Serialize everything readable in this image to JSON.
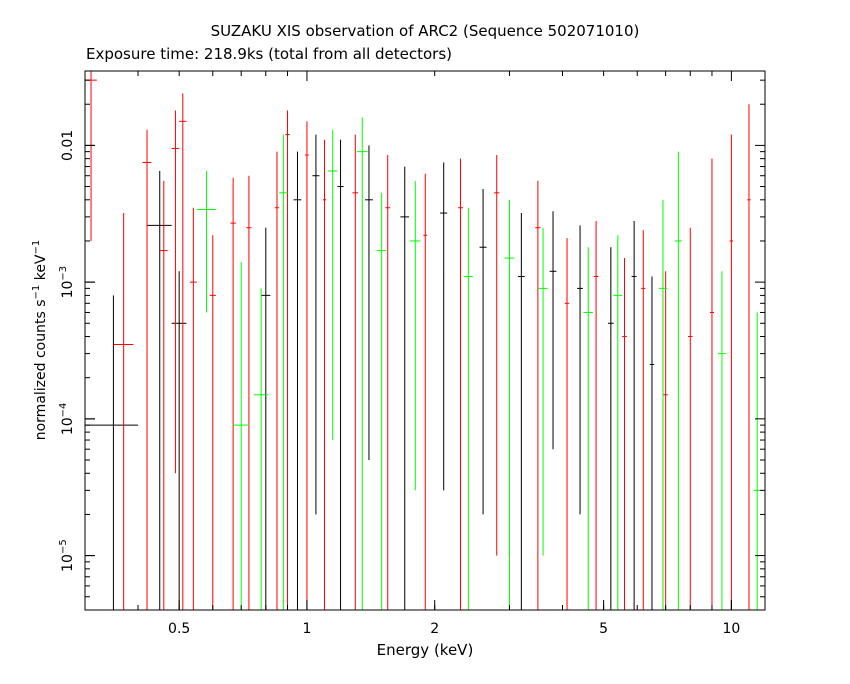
{
  "chart_data": {
    "type": "scatter",
    "title": "SUZAKU XIS observation of ARC2 (Sequence 502071010)",
    "subtitle": "Exposure time: 218.9ks (total from all detectors)",
    "xlabel": "Energy (keV)",
    "ylabel_base": "normalized counts s",
    "ylabel_sup1": "−1",
    "ylabel_mid": " keV",
    "ylabel_sup2": "−1",
    "x_scale": "log",
    "y_scale": "log",
    "xlim": [
      0.3,
      12
    ],
    "ylim": [
      4e-06,
      0.035
    ],
    "x_ticks": [
      {
        "value": 0.5,
        "label": "0.5"
      },
      {
        "value": 1,
        "label": "1"
      },
      {
        "value": 2,
        "label": "2"
      },
      {
        "value": 5,
        "label": "5"
      },
      {
        "value": 10,
        "label": "10"
      }
    ],
    "y_ticks": [
      {
        "value": 0.01,
        "label": "0.01"
      },
      {
        "value": 0.001,
        "label": "10",
        "exp": "−3"
      },
      {
        "value": 0.0001,
        "label": "10",
        "exp": "−4"
      },
      {
        "value": 1e-05,
        "label": "10",
        "exp": "−5"
      }
    ],
    "grid": false,
    "series": [
      {
        "color": "#000000",
        "points": [
          {
            "x": 0.35,
            "xlo": 0.3,
            "xhi": 0.4,
            "y": 9e-05,
            "ylo": 4e-06,
            "yhi": 0.0008
          },
          {
            "x": 0.45,
            "xlo": 0.42,
            "xhi": 0.48,
            "y": 0.0026,
            "ylo": 4e-06,
            "yhi": 0.0065
          },
          {
            "x": 0.5,
            "xlo": 0.48,
            "xhi": 0.52,
            "y": 0.0005,
            "ylo": 4e-06,
            "yhi": 0.0012
          },
          {
            "x": 0.8,
            "xlo": 0.78,
            "xhi": 0.82,
            "y": 0.0008,
            "ylo": 4e-06,
            "yhi": 0.0025
          },
          {
            "x": 0.95,
            "xlo": 0.93,
            "xhi": 0.97,
            "y": 0.004,
            "ylo": 4e-06,
            "yhi": 0.009
          },
          {
            "x": 1.05,
            "xlo": 1.03,
            "xhi": 1.07,
            "y": 0.006,
            "ylo": 2e-05,
            "yhi": 0.012
          },
          {
            "x": 1.2,
            "xlo": 1.18,
            "xhi": 1.22,
            "y": 0.005,
            "ylo": 4e-06,
            "yhi": 0.011
          },
          {
            "x": 1.4,
            "xlo": 1.37,
            "xhi": 1.43,
            "y": 0.004,
            "ylo": 5e-05,
            "yhi": 0.01
          },
          {
            "x": 1.7,
            "xlo": 1.66,
            "xhi": 1.74,
            "y": 0.003,
            "ylo": 4e-06,
            "yhi": 0.007
          },
          {
            "x": 2.1,
            "xlo": 2.06,
            "xhi": 2.14,
            "y": 0.0032,
            "ylo": 3e-05,
            "yhi": 0.0075
          },
          {
            "x": 2.6,
            "xlo": 2.55,
            "xhi": 2.65,
            "y": 0.0018,
            "ylo": 2e-05,
            "yhi": 0.0048
          },
          {
            "x": 3.2,
            "xlo": 3.14,
            "xhi": 3.26,
            "y": 0.0011,
            "ylo": 4e-06,
            "yhi": 0.0032
          },
          {
            "x": 3.8,
            "xlo": 3.73,
            "xhi": 3.87,
            "y": 0.0012,
            "ylo": 6e-05,
            "yhi": 0.0033
          },
          {
            "x": 4.4,
            "xlo": 4.33,
            "xhi": 4.47,
            "y": 0.0009,
            "ylo": 2e-05,
            "yhi": 0.0026
          },
          {
            "x": 5.2,
            "xlo": 5.12,
            "xhi": 5.28,
            "y": 0.0005,
            "ylo": 4e-06,
            "yhi": 0.0018
          },
          {
            "x": 5.9,
            "xlo": 5.82,
            "xhi": 5.98,
            "y": 0.0011,
            "ylo": 4e-06,
            "yhi": 0.0028
          },
          {
            "x": 6.5,
            "xlo": 6.42,
            "xhi": 6.58,
            "y": 0.00025,
            "ylo": 4e-06,
            "yhi": 0.0011
          }
        ]
      },
      {
        "color": "#ff0000",
        "points": [
          {
            "x": 0.31,
            "xlo": 0.3,
            "xhi": 0.32,
            "y": 0.03,
            "ylo": 0.002,
            "yhi": 0.035
          },
          {
            "x": 0.37,
            "xlo": 0.35,
            "xhi": 0.39,
            "y": 0.00035,
            "ylo": 4e-06,
            "yhi": 0.0032
          },
          {
            "x": 0.42,
            "xlo": 0.41,
            "xhi": 0.43,
            "y": 0.0075,
            "ylo": 4e-06,
            "yhi": 0.013
          },
          {
            "x": 0.46,
            "xlo": 0.45,
            "xhi": 0.47,
            "y": 0.0017,
            "ylo": 4e-06,
            "yhi": 0.0055
          },
          {
            "x": 0.49,
            "xlo": 0.48,
            "xhi": 0.5,
            "y": 0.0095,
            "ylo": 4e-05,
            "yhi": 0.018
          },
          {
            "x": 0.51,
            "xlo": 0.5,
            "xhi": 0.52,
            "y": 0.015,
            "ylo": 4e-06,
            "yhi": 0.024
          },
          {
            "x": 0.54,
            "xlo": 0.53,
            "xhi": 0.55,
            "y": 0.001,
            "ylo": 4e-06,
            "yhi": 0.0035
          },
          {
            "x": 0.6,
            "xlo": 0.59,
            "xhi": 0.61,
            "y": 0.0008,
            "ylo": 4e-06,
            "yhi": 0.0022
          },
          {
            "x": 0.67,
            "xlo": 0.66,
            "xhi": 0.68,
            "y": 0.0027,
            "ylo": 4e-06,
            "yhi": 0.0058
          },
          {
            "x": 0.73,
            "xlo": 0.72,
            "xhi": 0.74,
            "y": 0.0025,
            "ylo": 4e-06,
            "yhi": 0.006
          },
          {
            "x": 0.85,
            "xlo": 0.84,
            "xhi": 0.86,
            "y": 0.0035,
            "ylo": 4e-06,
            "yhi": 0.009
          },
          {
            "x": 0.9,
            "xlo": 0.89,
            "xhi": 0.91,
            "y": 0.012,
            "ylo": 4e-06,
            "yhi": 0.018
          },
          {
            "x": 1.0,
            "xlo": 0.99,
            "xhi": 1.01,
            "y": 0.0085,
            "ylo": 4e-06,
            "yhi": 0.015
          },
          {
            "x": 1.1,
            "xlo": 1.09,
            "xhi": 1.11,
            "y": 0.004,
            "ylo": 4e-06,
            "yhi": 0.011
          },
          {
            "x": 1.3,
            "xlo": 1.28,
            "xhi": 1.32,
            "y": 0.0045,
            "ylo": 4e-06,
            "yhi": 0.012
          },
          {
            "x": 1.55,
            "xlo": 1.53,
            "xhi": 1.57,
            "y": 0.0035,
            "ylo": 4e-06,
            "yhi": 0.0085
          },
          {
            "x": 1.9,
            "xlo": 1.88,
            "xhi": 1.92,
            "y": 0.0022,
            "ylo": 4e-06,
            "yhi": 0.0062
          },
          {
            "x": 2.3,
            "xlo": 2.27,
            "xhi": 2.33,
            "y": 0.0035,
            "ylo": 4e-06,
            "yhi": 0.008
          },
          {
            "x": 2.8,
            "xlo": 2.76,
            "xhi": 2.84,
            "y": 0.0045,
            "ylo": 1e-05,
            "yhi": 0.0085
          },
          {
            "x": 3.5,
            "xlo": 3.45,
            "xhi": 3.55,
            "y": 0.0025,
            "ylo": 4e-06,
            "yhi": 0.0055
          },
          {
            "x": 4.1,
            "xlo": 4.05,
            "xhi": 4.15,
            "y": 0.0007,
            "ylo": 4e-06,
            "yhi": 0.0021
          },
          {
            "x": 4.8,
            "xlo": 4.74,
            "xhi": 4.86,
            "y": 0.0011,
            "ylo": 4e-06,
            "yhi": 0.0028
          },
          {
            "x": 5.6,
            "xlo": 5.53,
            "xhi": 5.67,
            "y": 0.0004,
            "ylo": 4e-06,
            "yhi": 0.0015
          },
          {
            "x": 6.2,
            "xlo": 6.13,
            "xhi": 6.27,
            "y": 0.0009,
            "ylo": 4e-06,
            "yhi": 0.0024
          },
          {
            "x": 7.0,
            "xlo": 6.92,
            "xhi": 7.08,
            "y": 0.00015,
            "ylo": 4e-06,
            "yhi": 0.0012
          },
          {
            "x": 8.0,
            "xlo": 7.9,
            "xhi": 8.1,
            "y": 0.0004,
            "ylo": 4e-06,
            "yhi": 0.0025
          },
          {
            "x": 9.0,
            "xlo": 8.9,
            "xhi": 9.1,
            "y": 0.0006,
            "ylo": 4e-06,
            "yhi": 0.008
          },
          {
            "x": 10.0,
            "xlo": 9.9,
            "xhi": 10.1,
            "y": 0.002,
            "ylo": 4e-06,
            "yhi": 0.012
          },
          {
            "x": 11.0,
            "xlo": 10.9,
            "xhi": 11.1,
            "y": 0.004,
            "ylo": 4e-06,
            "yhi": 0.02
          }
        ]
      },
      {
        "color": "#00ff00",
        "points": [
          {
            "x": 0.58,
            "xlo": 0.55,
            "xhi": 0.61,
            "y": 0.0034,
            "ylo": 0.0006,
            "yhi": 0.0065
          },
          {
            "x": 0.7,
            "xlo": 0.67,
            "xhi": 0.73,
            "y": 9e-05,
            "ylo": 4e-06,
            "yhi": 0.0014
          },
          {
            "x": 0.78,
            "xlo": 0.75,
            "xhi": 0.81,
            "y": 0.00015,
            "ylo": 4e-06,
            "yhi": 0.0009
          },
          {
            "x": 0.88,
            "xlo": 0.86,
            "xhi": 0.9,
            "y": 0.0045,
            "ylo": 4e-06,
            "yhi": 0.012
          },
          {
            "x": 1.15,
            "xlo": 1.12,
            "xhi": 1.18,
            "y": 0.0065,
            "ylo": 7e-05,
            "yhi": 0.013
          },
          {
            "x": 1.35,
            "xlo": 1.31,
            "xhi": 1.39,
            "y": 0.009,
            "ylo": 4e-06,
            "yhi": 0.016
          },
          {
            "x": 1.5,
            "xlo": 1.46,
            "xhi": 1.54,
            "y": 0.0017,
            "ylo": 4e-06,
            "yhi": 0.0045
          },
          {
            "x": 1.8,
            "xlo": 1.75,
            "xhi": 1.85,
            "y": 0.002,
            "ylo": 3e-05,
            "yhi": 0.0055
          },
          {
            "x": 2.4,
            "xlo": 2.34,
            "xhi": 2.46,
            "y": 0.0011,
            "ylo": 4e-06,
            "yhi": 0.0035
          },
          {
            "x": 3.0,
            "xlo": 2.92,
            "xhi": 3.08,
            "y": 0.0015,
            "ylo": 4e-06,
            "yhi": 0.004
          },
          {
            "x": 3.6,
            "xlo": 3.51,
            "xhi": 3.69,
            "y": 0.0009,
            "ylo": 1e-05,
            "yhi": 0.0025
          },
          {
            "x": 4.6,
            "xlo": 4.48,
            "xhi": 4.72,
            "y": 0.0006,
            "ylo": 4e-06,
            "yhi": 0.0018
          },
          {
            "x": 5.4,
            "xlo": 5.27,
            "xhi": 5.53,
            "y": 0.0008,
            "ylo": 4e-06,
            "yhi": 0.0022
          },
          {
            "x": 6.9,
            "xlo": 6.75,
            "xhi": 7.05,
            "y": 0.0009,
            "ylo": 4e-06,
            "yhi": 0.004
          },
          {
            "x": 7.5,
            "xlo": 7.35,
            "xhi": 7.65,
            "y": 0.002,
            "ylo": 4e-06,
            "yhi": 0.009
          },
          {
            "x": 9.5,
            "xlo": 9.3,
            "xhi": 9.7,
            "y": 0.0003,
            "ylo": 4e-06,
            "yhi": 0.0012
          },
          {
            "x": 11.5,
            "xlo": 11.3,
            "xhi": 11.7,
            "y": 3e-05,
            "ylo": 4e-06,
            "yhi": 0.0006
          }
        ]
      }
    ]
  }
}
